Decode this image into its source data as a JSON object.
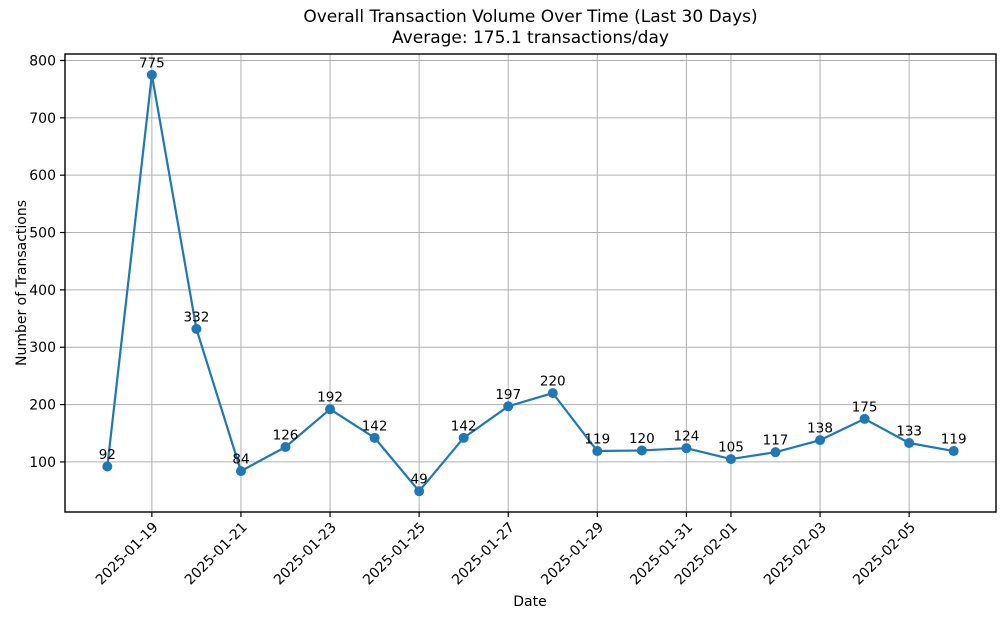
{
  "chart_data": {
    "type": "line",
    "title": "Overall Transaction Volume Over Time (Last 30 Days)",
    "subtitle": "Average: 175.1 transactions/day",
    "xlabel": "Date",
    "ylabel": "Number of Transactions",
    "average_transactions_per_day": 175.1,
    "x": [
      "2025-01-18",
      "2025-01-19",
      "2025-01-20",
      "2025-01-21",
      "2025-01-22",
      "2025-01-23",
      "2025-01-24",
      "2025-01-25",
      "2025-01-26",
      "2025-01-27",
      "2025-01-28",
      "2025-01-29",
      "2025-01-30",
      "2025-01-31",
      "2025-02-01",
      "2025-02-02",
      "2025-02-03",
      "2025-02-04",
      "2025-02-05",
      "2025-02-06"
    ],
    "values": [
      92,
      775,
      332,
      84,
      126,
      192,
      142,
      49,
      142,
      197,
      220,
      119,
      120,
      124,
      105,
      117,
      138,
      175,
      133,
      119
    ],
    "data_labels_shown": true,
    "x_ticks": [
      {
        "index": 1,
        "label": "2025-01-19"
      },
      {
        "index": 3,
        "label": "2025-01-21"
      },
      {
        "index": 5,
        "label": "2025-01-23"
      },
      {
        "index": 7,
        "label": "2025-01-25"
      },
      {
        "index": 9,
        "label": "2025-01-27"
      },
      {
        "index": 11,
        "label": "2025-01-29"
      },
      {
        "index": 13,
        "label": "2025-01-31"
      },
      {
        "index": 14,
        "label": "2025-02-01"
      },
      {
        "index": 16,
        "label": "2025-02-03"
      },
      {
        "index": 18,
        "label": "2025-02-05"
      }
    ],
    "x_tick_rotation_deg": 45,
    "y_ticks": [
      100,
      200,
      300,
      400,
      500,
      600,
      700,
      800
    ],
    "ylim": [
      12.7,
      811.3
    ],
    "x_index_range": [
      -0.95,
      19.95
    ],
    "grid": true,
    "legend": "none",
    "line_color": "#1f77b4",
    "marker": "circle",
    "grid_color": "#b0b0b0",
    "spine_color": "#000000"
  }
}
